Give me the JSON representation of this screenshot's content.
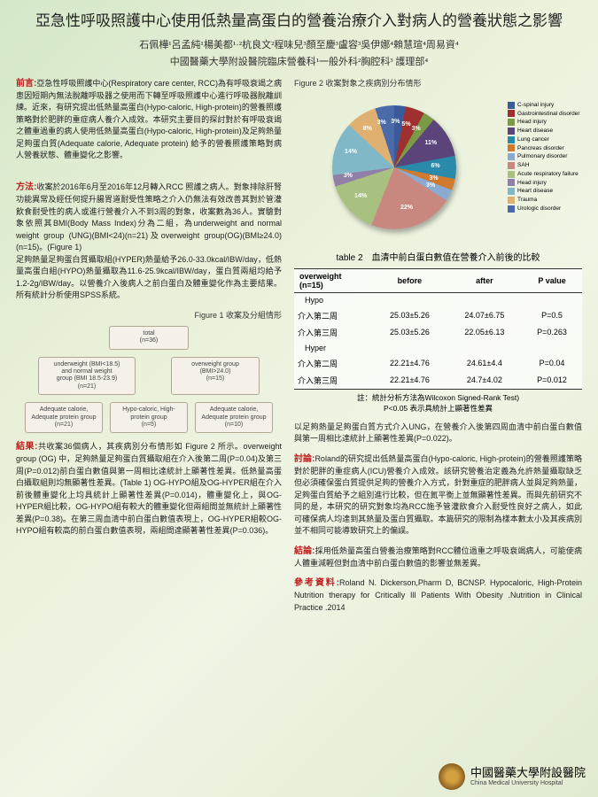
{
  "title": "亞急性呼吸照護中心使用低熱量高蛋白的營養治療介入對病人的營養狀態之影響",
  "authors": "石佩樺¹呂孟純¹楊美都¹·²杭良文²程味兒³顏至慶³盧容³吳伊娜⁴賴慧瑄⁴周易資⁴",
  "affiliation": "中國醫藥大學附設醫院臨床營養科¹一般外科²胸腔科³ 護理部⁴",
  "intro_label": "前言:",
  "intro_text": "亞急性呼吸照護中心(Respiratory care center, RCC)為有呼吸衰竭之病患因短期內無法脫離呼吸器之使用而下轉至呼吸照護中心進行呼吸器脫離訓練。近來，有研究提出低熱量高蛋白(Hypo-caloric, High-protein)的營養照護策略對於肥胖的重症病人養介入成效。本研究主要目的探討對於有呼吸衰竭之體重過重的病人使用低熱量高蛋白(Hypo-caloric, High-protein)及足夠熱量足夠蛋白質(Adequate calorie, Adequate protein) 給予的營養照護策略對病人營養狀態、體重變化之影響。",
  "methods_label": "方法:",
  "methods_text": "收案於2016年6月至2016年12月轉入RCC 照護之病人。對象排除肝腎功能異常及經任何提升腸胃道耐受性策略之介入仍無法有效改善其對於管灌飲食耐受性的病人或進行營養介入不到3周的對象，收案數為36人。實驗對象依照其BMI(Body Mass Index)分為二組，為underweight and normal weight group (UNG)(BMI<24)(n=21)及overweight group(OG)(BMI≥24.0) (n=15)。(Figure 1)\n足夠熱量足夠蛋白質攝取組(HYPER)熱量給予26.0-33.0kcal/IBW/day，低熱量高蛋白組(HYPO)熱量攝取為11.6-25.9kcal/IBW/day，蛋白質兩組均給予1.2-2g/IBW/day。以營養介入後病人之前白蛋白及體重變化作為主要結果。所有統計分析使用SPSS系統。",
  "fig1_caption": "Figure 1 收案及分組情形",
  "flow": {
    "total": "total\n(n=36)",
    "ung": "underweight (BMI<18.5)\nand normal weight\ngroup (BMI 18.5-23.9)\n(n=21)",
    "og": "overweight group\n(BMI>24.0)\n(n=15)",
    "ung_adq": "Adequate calorie,\nAdequate protein group\n(n=21)",
    "og_hypo": "Hypo-caloric, High-\nprotein group\n(n=5)",
    "og_adq": "Adequate calorie,\nAdequate protein group\n(n=10)"
  },
  "results_label": "結果:",
  "results_text": "共收案36個病人，其疾病別分布情形如 Figure 2 所示。overweight group (OG) 中，足夠熱量足夠蛋白質攝取組在介入後第二周(P=0.04)及第三周(P=0.012)前白蛋白數值與第一周相比達統計上顯著性差異。低熱量高蛋白攝取組則均無顯著性差異。(Table 1) OG-HYPO組及OG-HYPER組在介入前後體重變化上均具統計上顯著性差異(P=0.014)，體重變化上，與OG-HYPER組比較，OG-HYPO組有較大的體重變化但兩組間並無統計上顯著性差異(P=0.38)。在第三周血清中前白蛋白數值表現上，OG-HYPER組較OG-HYPO組有較高的前白蛋白數值表現，兩組間達顯著著性差異(P=0.036)。",
  "fig2_caption": "Figure 2 收案對象之疾病別分布情形",
  "pie": {
    "type": "pie",
    "slices": [
      {
        "label": "C-spinal injury",
        "pct": 3,
        "color": "#3a5a9a"
      },
      {
        "label": "Gastrointestinal disorder",
        "pct": 5,
        "color": "#a03030"
      },
      {
        "label": "Head injury",
        "pct": 3,
        "color": "#7a9a45"
      },
      {
        "label": "Heart disease",
        "pct": 11,
        "color": "#5a447a"
      },
      {
        "label": "Lung cancer",
        "pct": 6,
        "color": "#2a8aaa"
      },
      {
        "label": "Pancreas disorder",
        "pct": 3,
        "color": "#d07a30"
      },
      {
        "label": "Pulmonary disorder",
        "pct": 3,
        "color": "#8aaad0"
      },
      {
        "label": "SAH",
        "pct": 22,
        "color": "#c88880"
      },
      {
        "label": "Acute respiratory failure",
        "pct": 14,
        "color": "#a8c080"
      },
      {
        "label": "Head injury",
        "pct": 3,
        "color": "#9080a8"
      },
      {
        "label": "Heart disease",
        "pct": 14,
        "color": "#80b8c8"
      },
      {
        "label": "Trauma",
        "pct": 8,
        "color": "#e0b070"
      },
      {
        "label": "Urologic disorder",
        "pct": 3,
        "color": "#4a6aaa"
      }
    ],
    "label_color": "#ffffff",
    "label_fontsize": 7
  },
  "table2_caption": "table 2　血清中前白蛋白數值在營養介入前後的比較",
  "table": {
    "header": [
      "overweight\n(n=15)",
      "before",
      "after",
      "P value"
    ],
    "groups": [
      {
        "name": "Hypo",
        "rows": [
          {
            "label": "介入第二周",
            "before": "25.03±5.26",
            "after": "24.07±6.75",
            "p": "P=0.5"
          },
          {
            "label": "介入第三周",
            "before": "25.03±5.26",
            "after": "22.05±6.13",
            "p": "P=0.263"
          }
        ]
      },
      {
        "name": "Hyper",
        "rows": [
          {
            "label": "介入第二周",
            "before": "22.21±4.76",
            "after": "24.61±4.4",
            "p": "P=0.04"
          },
          {
            "label": "介入第三周",
            "before": "22.21±4.76",
            "after": "24.7±4.02",
            "p": "P=0.012"
          }
        ]
      }
    ]
  },
  "table_note": "註：統計分析方法為Wilcoxon Signed-Rank Test)\nP<0.05 表示具統計上顯著性差異",
  "extra_para": "以足夠熱量足夠蛋白質方式介入UNG，在營養介入後第四周血清中前白蛋白數值與第一周相比達統計上顯著性差異(P=0.022)。",
  "discussion_label": "討論:",
  "discussion_text": "Roland的研究提出低熱量高蛋白(Hypo-caloric, High-protein)的營養照護策略對於肥胖的重症病人(ICU)營養介入成效。該研究營養治定義為允許熱量攝取缺乏但必須確保蛋白質提供足夠的營養介入方式，針對重症的肥胖病人並與足夠熱量，足夠蛋白質給予之組別進行比較，但在氮平衡上並無顯著性差異。而與先前研究不同的是，本研究的研究對象均為RCC施予管灌飲食介入耐受性良好之病人，如此可確保病人均達到其熱量及蛋白質攝取。本篇研究的限制為樣本數太小及其疾病別並不相同可能導致研究上的偏誤。",
  "conclusion_label": "結論:",
  "conclusion_text": "採用低熱量高蛋白營養治療策略對RCC體位過重之呼吸衰竭病人，可能使病人體重減輕但對血清中前白蛋白數值的影響並無差異。",
  "ref_label": "參考資料:",
  "ref_text": "Roland N. Dickerson,Pharm D, BCNSP. Hypocaloric, High-Protein Nutrition therapy for Critically Ill Patients With Obesity .Nutrition in Clinical Practice .2014",
  "footer_cn": "中國醫藥大學附設醫院",
  "footer_en": "China Medical University Hospital"
}
